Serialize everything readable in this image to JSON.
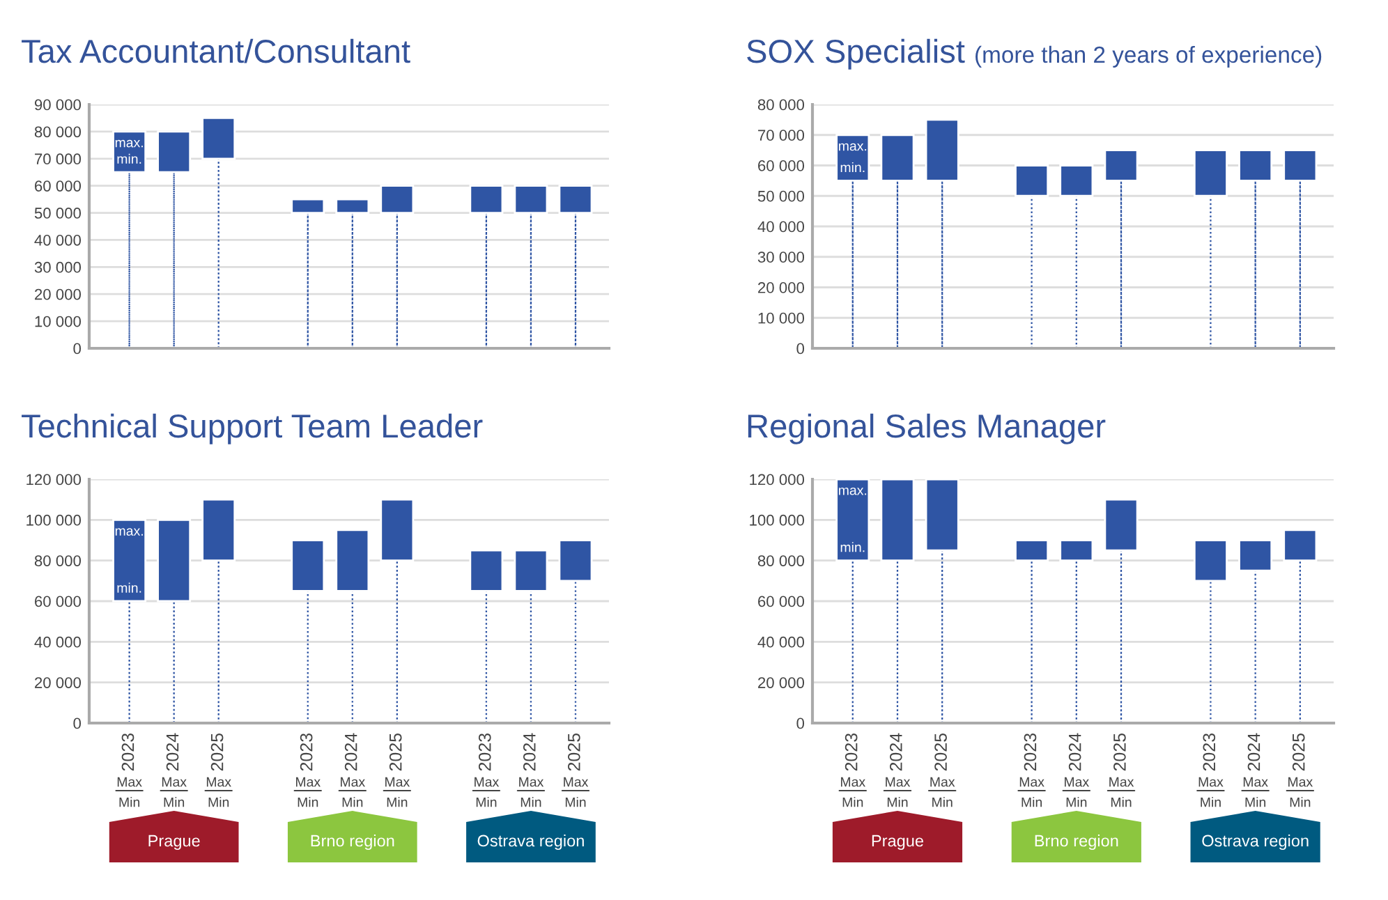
{
  "chart_data": [
    {
      "type": "bar",
      "title": "Tax Accountant/Consultant",
      "categories": [
        "2023",
        "2024",
        "2025",
        null,
        "2023",
        "2024",
        "2025",
        null,
        "2023",
        "2024",
        "2025"
      ],
      "stacked": true,
      "series": [
        {
          "color": "#2f55a4",
          "line_style": "dotted",
          "values": [
            65000,
            65000,
            70000,
            null,
            50000,
            50000,
            50000,
            null,
            50000,
            50000,
            50000
          ]
        },
        {
          "color": "#2f55a4",
          "values": [
            15000,
            15000,
            15000,
            null,
            5000,
            5000,
            10000,
            null,
            10000,
            10000,
            10000
          ]
        }
      ],
      "ylim": [
        0,
        90000
      ],
      "yticks": [
        {
          "value": 0,
          "label": "0"
        },
        {
          "value": 10000,
          "label": "10 000"
        },
        {
          "value": 20000,
          "label": "20 000"
        },
        {
          "value": 30000,
          "label": "30 000"
        },
        {
          "value": 40000,
          "label": "40 000"
        },
        {
          "value": 50000,
          "label": "50 000"
        },
        {
          "value": 60000,
          "label": "60 000"
        },
        {
          "value": 70000,
          "label": "70 000"
        },
        {
          "value": 80000,
          "label": "80 000"
        },
        {
          "value": 90000,
          "label": "90 000"
        }
      ],
      "grid": "y",
      "tick_labels": "y",
      "annotations": [
        {
          "text": "max.",
          "x": "2023",
          "y": 80000
        },
        {
          "text": "min.",
          "x": "2023",
          "y": 65000
        }
      ]
    },
    {
      "type": "bar",
      "title": "SOX Specialist",
      "subtitle": "(more than 2 years of experience)",
      "categories": [
        "2023",
        "2024",
        "2025",
        null,
        "2023",
        "2024",
        "2025",
        null,
        "2023",
        "2024",
        "2025"
      ],
      "stacked": true,
      "series": [
        {
          "color": "#2f55a4",
          "line_style": "dotted",
          "values": [
            55000,
            55000,
            55000,
            null,
            50000,
            50000,
            55000,
            null,
            50000,
            55000,
            55000
          ]
        },
        {
          "color": "#2f55a4",
          "values": [
            15000,
            15000,
            20000,
            null,
            10000,
            10000,
            10000,
            null,
            15000,
            10000,
            10000
          ]
        }
      ],
      "ylim": [
        0,
        80000
      ],
      "yticks": [
        {
          "value": 0,
          "label": "0"
        },
        {
          "value": 10000,
          "label": "10 000"
        },
        {
          "value": 20000,
          "label": "20 000"
        },
        {
          "value": 30000,
          "label": "30 000"
        },
        {
          "value": 40000,
          "label": "40 000"
        },
        {
          "value": 50000,
          "label": "50 000"
        },
        {
          "value": 60000,
          "label": "60 000"
        },
        {
          "value": 70000,
          "label": "70 000"
        },
        {
          "value": 80000,
          "label": "80 000"
        }
      ],
      "grid": "y",
      "tick_labels": "y",
      "annotations": [
        {
          "text": "max.",
          "x": "2023",
          "y": 70000
        },
        {
          "text": "min.",
          "x": "2023",
          "y": 55000
        }
      ]
    },
    {
      "type": "bar",
      "title": "Technical Support Team Leader",
      "categories": [
        "2023",
        "2024",
        "2025",
        null,
        "2023",
        "2024",
        "2025",
        null,
        "2023",
        "2024",
        "2025"
      ],
      "stacked": true,
      "series": [
        {
          "color": "#2f55a4",
          "line_style": "dotted",
          "values": [
            60000,
            60000,
            80000,
            null,
            65000,
            65000,
            80000,
            null,
            65000,
            65000,
            70000
          ]
        },
        {
          "color": "#2f55a4",
          "values": [
            40000,
            40000,
            30000,
            null,
            25000,
            30000,
            30000,
            null,
            20000,
            20000,
            20000
          ]
        }
      ],
      "ylim": [
        0,
        120000
      ],
      "yticks": [
        {
          "value": 0,
          "label": "0"
        },
        {
          "value": 20000,
          "label": "20 000"
        },
        {
          "value": 40000,
          "label": "40 000"
        },
        {
          "value": 60000,
          "label": "60 000"
        },
        {
          "value": 80000,
          "label": "80 000"
        },
        {
          "value": 100000,
          "label": "100 000"
        },
        {
          "value": 120000,
          "label": "120 000"
        }
      ],
      "grid": "y",
      "annotations": [
        {
          "text": "max.",
          "x": "2023",
          "y": 100000
        },
        {
          "text": "min.",
          "x": "2023",
          "y": 60000
        },
        "Max",
        "Min",
        "Prague",
        "Brno region",
        "Ostrava region"
      ]
    },
    {
      "type": "bar",
      "title": "Regional Sales Manager",
      "categories": [
        "2023",
        "2024",
        "2025",
        null,
        "2023",
        "2024",
        "2025",
        null,
        "2023",
        "2024",
        "2025"
      ],
      "stacked": true,
      "series": [
        {
          "color": "#2f55a4",
          "line_style": "dotted",
          "values": [
            80000,
            80000,
            85000,
            null,
            80000,
            80000,
            85000,
            null,
            70000,
            75000,
            80000
          ]
        },
        {
          "color": "#2f55a4",
          "values": [
            40000,
            40000,
            35000,
            null,
            10000,
            10000,
            25000,
            null,
            20000,
            15000,
            15000
          ]
        }
      ],
      "ylim": [
        0,
        120000
      ],
      "yticks": [
        {
          "value": 0,
          "label": "0"
        },
        {
          "value": 20000,
          "label": "20 000"
        },
        {
          "value": 40000,
          "label": "40 000"
        },
        {
          "value": 60000,
          "label": "60 000"
        },
        {
          "value": 80000,
          "label": "80 000"
        },
        {
          "value": 100000,
          "label": "100 000"
        },
        {
          "value": 120000,
          "label": "120 000"
        }
      ],
      "grid": "y",
      "annotations": [
        {
          "text": "max.",
          "x": "2023",
          "y": 120000
        },
        {
          "text": "min.",
          "x": "2023",
          "y": 80000
        },
        "Max",
        "Min",
        "Prague",
        "Brno region",
        "Ostrava region"
      ]
    }
  ]
}
